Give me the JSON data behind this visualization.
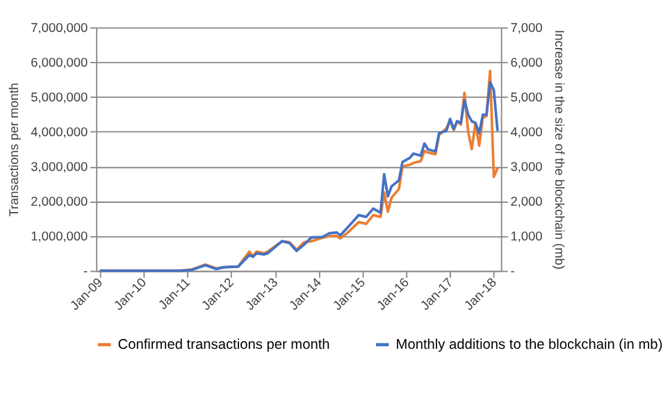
{
  "chart_data": {
    "type": "line",
    "xlabel": null,
    "ylabel": "Transactions per month",
    "y2label": "Increase in the size of the blockchain (mb)",
    "x": [
      "2009-01",
      "2010-11",
      "2011-02",
      "2011-06",
      "2011-09",
      "2011-11",
      "2012-03",
      "2012-06",
      "2012-07",
      "2012-08",
      "2012-10",
      "2012-11",
      "2013-03",
      "2013-05",
      "2013-07",
      "2013-09",
      "2013-11",
      "2014-02",
      "2014-04",
      "2014-06",
      "2014-07",
      "2014-09",
      "2014-12",
      "2015-02",
      "2015-04",
      "2015-06",
      "2015-07",
      "2015-08",
      "2015-09",
      "2015-11",
      "2015-12",
      "2016-02",
      "2016-03",
      "2016-05",
      "2016-06",
      "2016-07",
      "2016-09",
      "2016-10",
      "2016-12",
      "2017-01",
      "2017-02",
      "2017-03",
      "2017-04",
      "2017-05",
      "2017-06",
      "2017-07",
      "2017-08",
      "2017-09",
      "2017-10",
      "2017-11",
      "2017-12",
      "2018-01",
      "2018-02"
    ],
    "series": [
      {
        "name": "Confirmed transactions per month",
        "color": "#ed7d31",
        "values": [
          0,
          0,
          30000,
          180000,
          70000,
          100000,
          120000,
          550000,
          420000,
          550000,
          500000,
          550000,
          850000,
          820000,
          600000,
          820000,
          850000,
          950000,
          1000000,
          1000000,
          930000,
          1100000,
          1400000,
          1350000,
          1600000,
          1550000,
          2250000,
          1700000,
          2100000,
          2350000,
          3000000,
          3050000,
          3100000,
          3150000,
          3450000,
          3400000,
          3350000,
          3900000,
          4100000,
          4300000,
          4050000,
          4300000,
          4200000,
          5120000,
          4000000,
          3500000,
          4250000,
          3600000,
          4400000,
          4450000,
          5750000,
          2700000,
          2950000
        ]
      },
      {
        "name": "Monthly additions to the blockchain (in mb)",
        "color": "#4472c4",
        "axis": "y2",
        "values": [
          0,
          0,
          20,
          160,
          50,
          100,
          120,
          450,
          400,
          500,
          470,
          500,
          850,
          800,
          570,
          750,
          960,
          970,
          1080,
          1100,
          1020,
          1250,
          1600,
          1550,
          1790,
          1670,
          2780,
          2140,
          2430,
          2600,
          3130,
          3250,
          3370,
          3310,
          3660,
          3490,
          3430,
          3960,
          4020,
          4370,
          4080,
          4300,
          4250,
          4900,
          4490,
          4300,
          4250,
          3960,
          4490,
          4490,
          5420,
          5200,
          4020
        ]
      }
    ],
    "xlim": [
      "2008-12",
      "2018-03"
    ],
    "xticks": [
      {
        "value": "2009-01",
        "label": "Jan-09"
      },
      {
        "value": "2010-01",
        "label": "Jan-10"
      },
      {
        "value": "2011-01",
        "label": "Jan-11"
      },
      {
        "value": "2012-01",
        "label": "Jan-12"
      },
      {
        "value": "2013-01",
        "label": "Jan-13"
      },
      {
        "value": "2014-01",
        "label": "Jan-14"
      },
      {
        "value": "2015-01",
        "label": "Jan-15"
      },
      {
        "value": "2016-01",
        "label": "Jan-16"
      },
      {
        "value": "2017-01",
        "label": "Jan-17"
      },
      {
        "value": "2018-01",
        "label": "Jan-18"
      }
    ],
    "ylim": [
      0,
      7000000
    ],
    "yticks": [
      {
        "value": 0,
        "label": "-"
      },
      {
        "value": 1000000,
        "label": "1,000,000"
      },
      {
        "value": 2000000,
        "label": "2,000,000"
      },
      {
        "value": 3000000,
        "label": "3,000,000"
      },
      {
        "value": 4000000,
        "label": "4,000,000"
      },
      {
        "value": 5000000,
        "label": "5,000,000"
      },
      {
        "value": 6000000,
        "label": "6,000,000"
      },
      {
        "value": 7000000,
        "label": "7,000,000"
      }
    ],
    "y2lim": [
      0,
      7000
    ],
    "y2ticks": [
      {
        "value": 0,
        "label": "-"
      },
      {
        "value": 1000,
        "label": "1,000"
      },
      {
        "value": 2000,
        "label": "2,000"
      },
      {
        "value": 3000,
        "label": "3,000"
      },
      {
        "value": 4000,
        "label": "4,000"
      },
      {
        "value": 5000,
        "label": "5,000"
      },
      {
        "value": 6000,
        "label": "6,000"
      },
      {
        "value": 7000,
        "label": "7,000"
      }
    ],
    "grid": "y",
    "legend": "bottom",
    "marker": "none",
    "line_style": "solid"
  }
}
